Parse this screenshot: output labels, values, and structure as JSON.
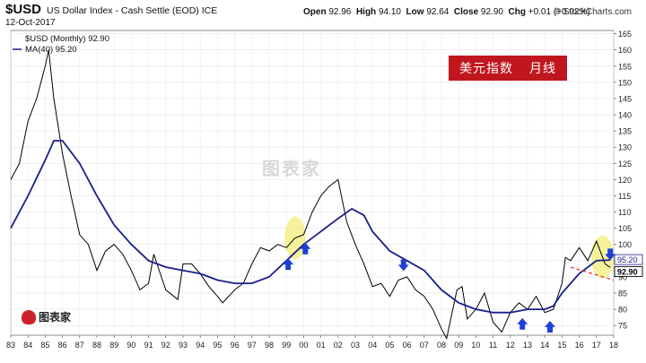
{
  "header": {
    "symbol": "$USD",
    "description": "US Dollar Index - Cash Settle (EOD)  ICE",
    "date": "12-Oct-2017",
    "open_label": "Open",
    "open": "92.96",
    "high_label": "High",
    "high": "94.10",
    "low_label": "Low",
    "low": "92.64",
    "close_label": "Close",
    "close": "92.90",
    "chg_label": "Chg",
    "chg": "+0.01 (+0.02%)",
    "credit": "© StockCharts.com"
  },
  "legend": {
    "series1": "$USD (Monthly) 92.90",
    "series2": "MA(40) 95.20"
  },
  "title_box": {
    "part1": "美元指数",
    "part2": "月线"
  },
  "watermark": "图表家",
  "logo_text": "图表家",
  "colors": {
    "price": "#000000",
    "ma": "#1a1f8c",
    "title_bg": "#c0161e",
    "arrow": "#1f3fd6",
    "highlight": "#f2ee7a",
    "trend": "#e0302a"
  },
  "chart_data": {
    "type": "line",
    "title": "美元指数 月线",
    "xlabel": "",
    "ylabel": "",
    "x_tick_labels": [
      "83",
      "84",
      "85",
      "86",
      "87",
      "88",
      "89",
      "90",
      "91",
      "92",
      "93",
      "94",
      "95",
      "96",
      "97",
      "98",
      "99",
      "00",
      "01",
      "02",
      "03",
      "04",
      "05",
      "06",
      "07",
      "08",
      "09",
      "10",
      "11",
      "12",
      "13",
      "14",
      "15",
      "16",
      "17",
      "18"
    ],
    "y_tick_labels": [
      "75",
      "80",
      "85",
      "90",
      "95",
      "100",
      "105",
      "110",
      "115",
      "120",
      "125",
      "130",
      "135",
      "140",
      "145",
      "150",
      "155",
      "160",
      "165"
    ],
    "ylim": [
      72,
      166
    ],
    "xlim": [
      1983,
      2018
    ],
    "grid": true,
    "series": [
      {
        "name": "$USD (Monthly) 92.90",
        "x": [
          1983.0,
          1983.5,
          1984.0,
          1984.5,
          1985.0,
          1985.2,
          1985.5,
          1986.0,
          1986.5,
          1987.0,
          1987.5,
          1988.0,
          1988.5,
          1989.0,
          1989.5,
          1990.0,
          1990.5,
          1991.0,
          1991.3,
          1991.8,
          1992.0,
          1992.7,
          1993.0,
          1993.5,
          1994.0,
          1994.5,
          1995.0,
          1995.3,
          1996.0,
          1996.5,
          1997.0,
          1997.5,
          1998.0,
          1998.5,
          1999.0,
          1999.5,
          2000.0,
          2000.5,
          2001.0,
          2001.5,
          2002.0,
          2002.5,
          2003.0,
          2003.5,
          2004.0,
          2004.5,
          2005.0,
          2005.5,
          2006.0,
          2006.5,
          2007.0,
          2007.5,
          2008.0,
          2008.3,
          2008.9,
          2009.2,
          2009.5,
          2010.0,
          2010.5,
          2011.0,
          2011.5,
          2012.0,
          2012.5,
          2013.0,
          2013.5,
          2014.0,
          2014.5,
          2015.0,
          2015.2,
          2015.5,
          2016.0,
          2016.5,
          2017.0,
          2017.5,
          2017.8
        ],
        "values": [
          120,
          125,
          138,
          145,
          155,
          160,
          145,
          128,
          115,
          103,
          100,
          92,
          98,
          100,
          97,
          92,
          86,
          88,
          97,
          89,
          86,
          83,
          94,
          94,
          91,
          87,
          84,
          82,
          86,
          88,
          94,
          99,
          98,
          100,
          99,
          102,
          103,
          110,
          115,
          118,
          120,
          107,
          100,
          94,
          87,
          88,
          84,
          89,
          90,
          86,
          84,
          80,
          74,
          71,
          86,
          87,
          77,
          80,
          85,
          76,
          73,
          79,
          82,
          80,
          84,
          79,
          80,
          88,
          96,
          95,
          99,
          95,
          101,
          94,
          92.9
        ]
      },
      {
        "name": "MA(40) 95.20",
        "x": [
          1983.0,
          1984.0,
          1985.0,
          1985.5,
          1986.0,
          1987.0,
          1988.0,
          1989.0,
          1990.0,
          1991.0,
          1992.0,
          1993.0,
          1994.0,
          1995.0,
          1996.0,
          1997.0,
          1998.0,
          1999.0,
          2000.0,
          2001.0,
          2002.0,
          2002.8,
          2003.5,
          2004.0,
          2005.0,
          2006.0,
          2007.0,
          2008.0,
          2009.0,
          2010.0,
          2011.0,
          2012.0,
          2013.0,
          2014.0,
          2014.5,
          2015.0,
          2016.0,
          2017.0,
          2017.8
        ],
        "values": [
          105,
          115,
          126,
          132,
          132,
          125,
          115,
          106,
          100,
          95,
          93,
          92,
          91,
          89,
          88,
          88,
          90,
          95,
          100,
          104,
          108,
          111,
          109,
          104,
          98,
          95,
          92,
          86,
          82,
          80,
          79,
          79,
          80,
          80,
          81,
          85,
          91,
          95,
          95.2
        ]
      }
    ],
    "last_values": [
      "95.20",
      "92.90"
    ],
    "annotations": {
      "up_arrows_at": [
        1999.1,
        2000.1,
        2012.7,
        2014.3
      ],
      "down_arrows_at": [
        2005.8,
        2017.8
      ],
      "highlight_regions": [
        [
          1999.0,
          2000.0
        ],
        [
          2016.8,
          2017.9
        ]
      ],
      "trend_line": {
        "x": [
          2015.5,
          2018.0
        ],
        "values": [
          93,
          89
        ]
      }
    }
  }
}
